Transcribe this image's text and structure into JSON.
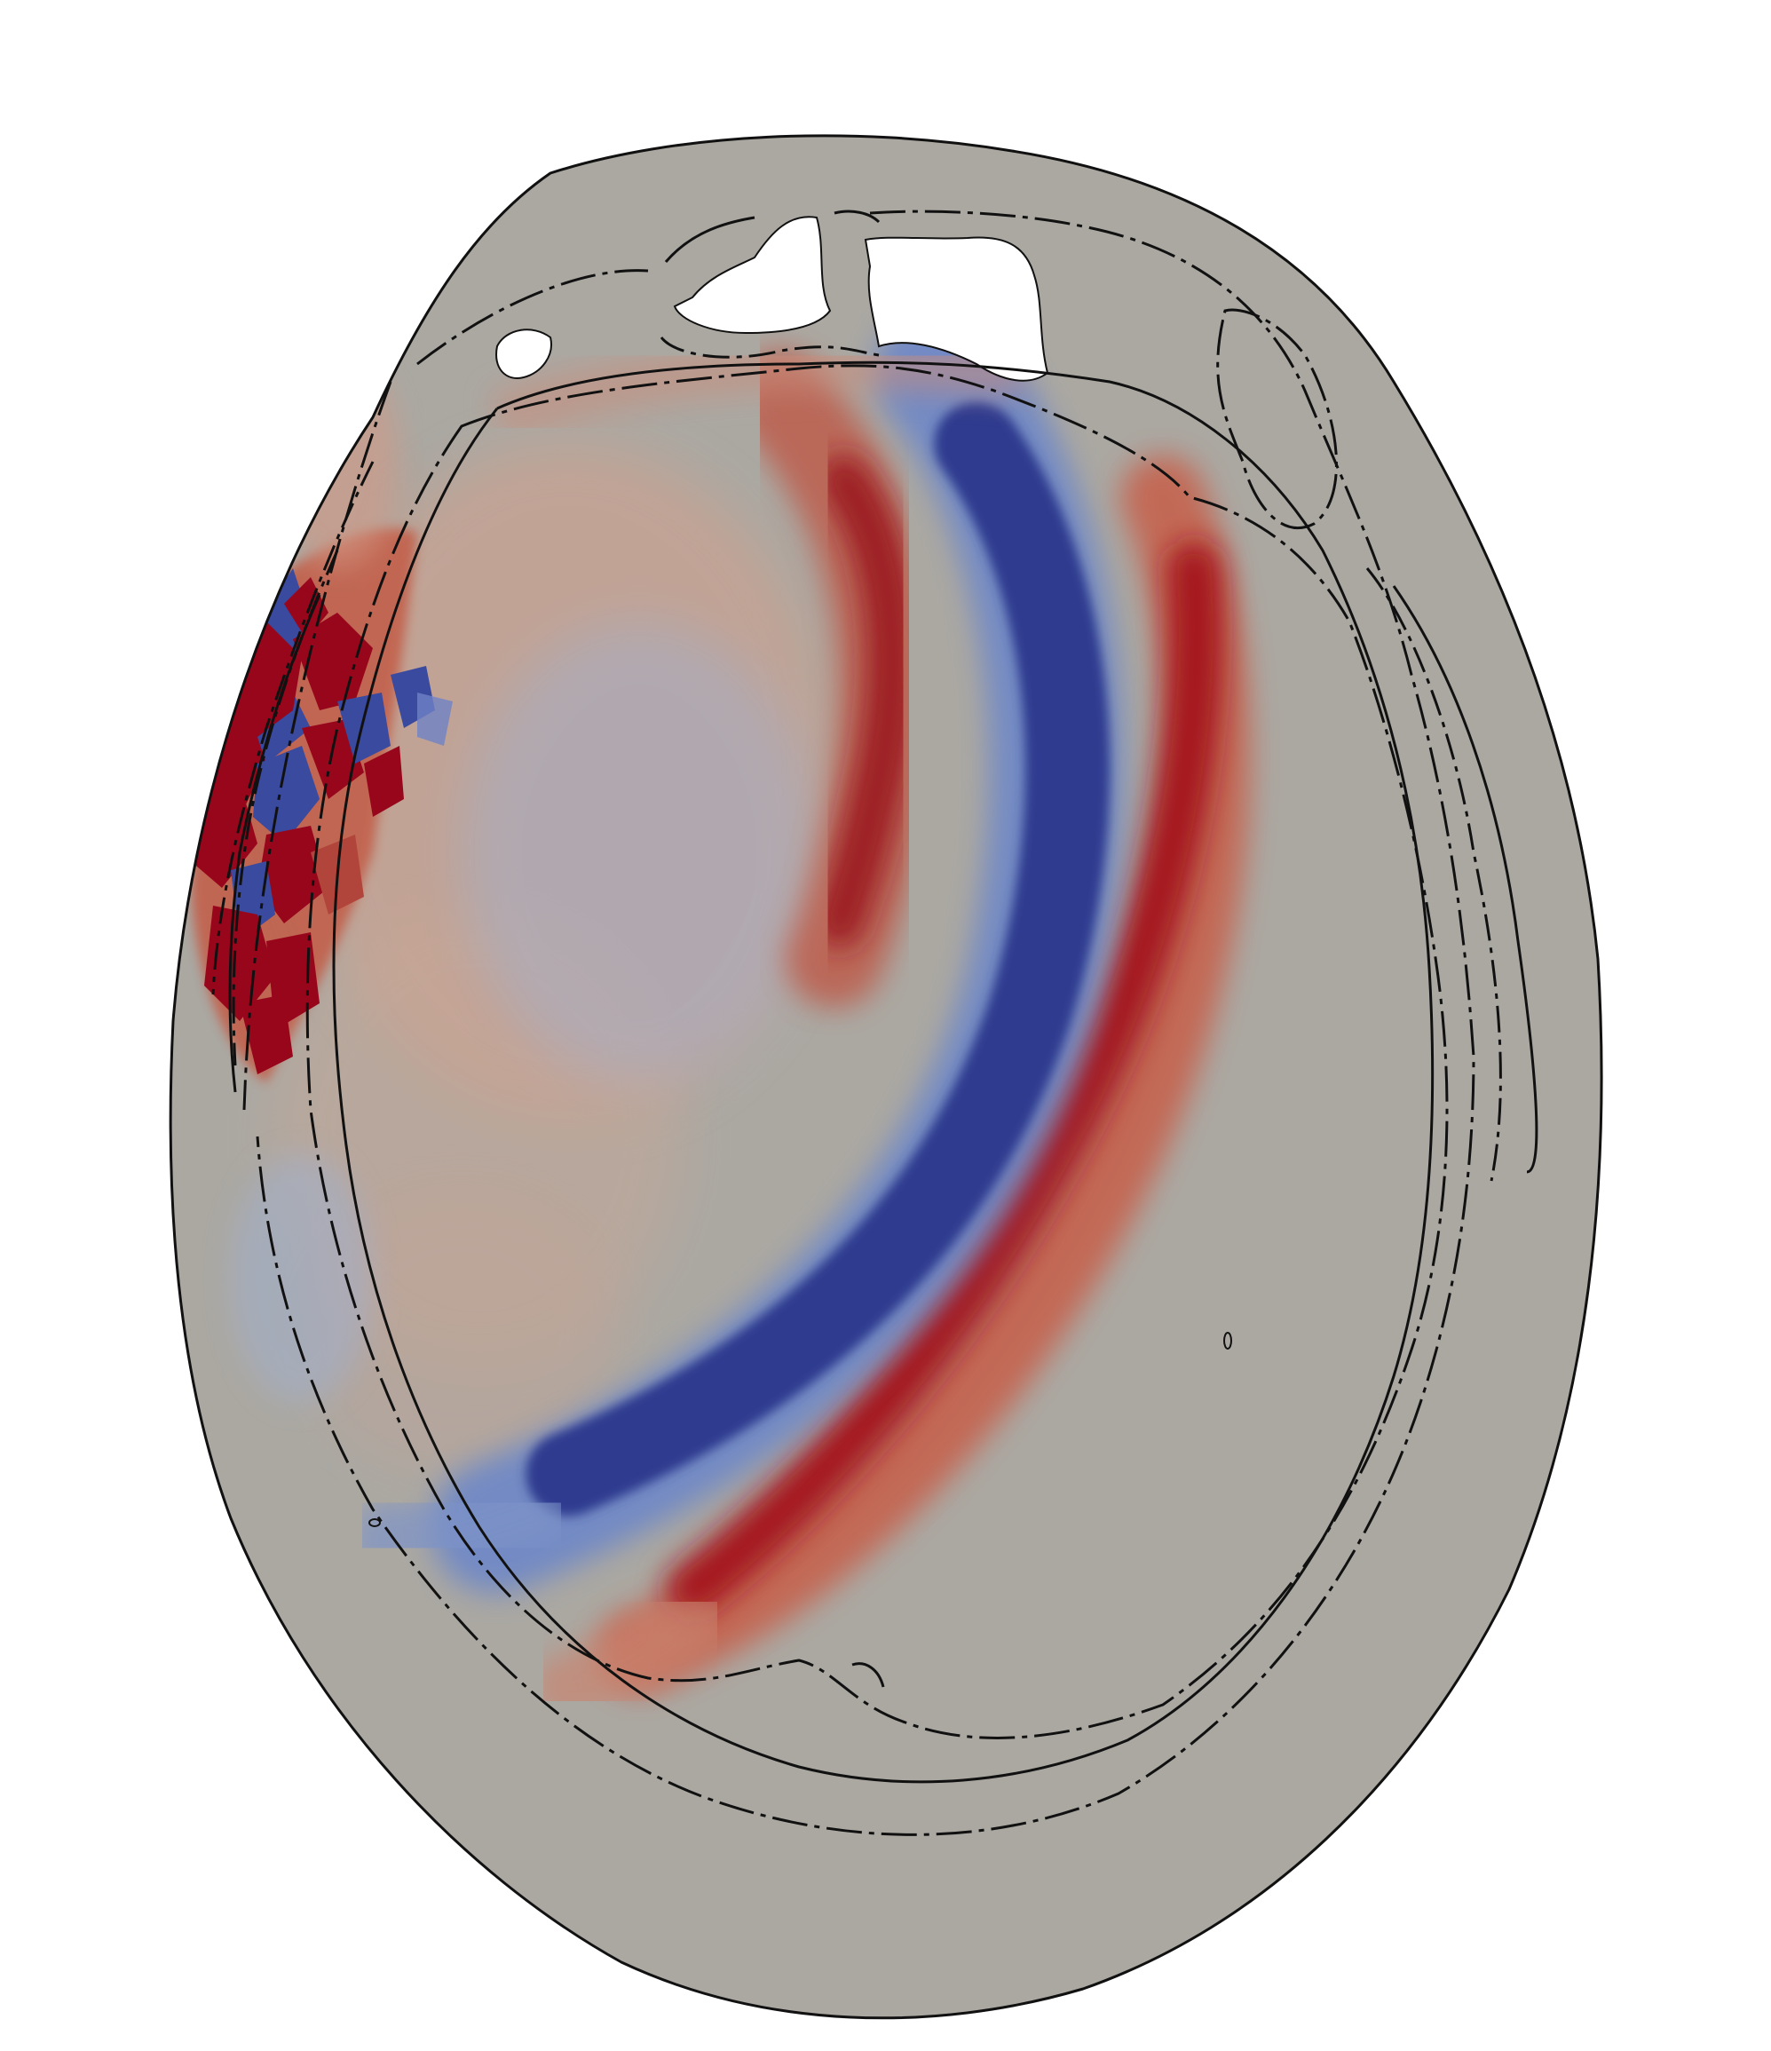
{
  "figure": {
    "kind": "axial head cross-section wavefield snapshot",
    "colors": {
      "background": "#ffffff",
      "tissue_gray": "#aba8a2",
      "warm_red": "#98061c",
      "mid_red": "#c35c49",
      "light_red": "#d79a85",
      "cool_blue": "#2e3b8f",
      "mid_blue": "#5f78c0",
      "light_blue": "#9bb0d8",
      "contour": "#111111",
      "void": "#ffffff"
    }
  }
}
